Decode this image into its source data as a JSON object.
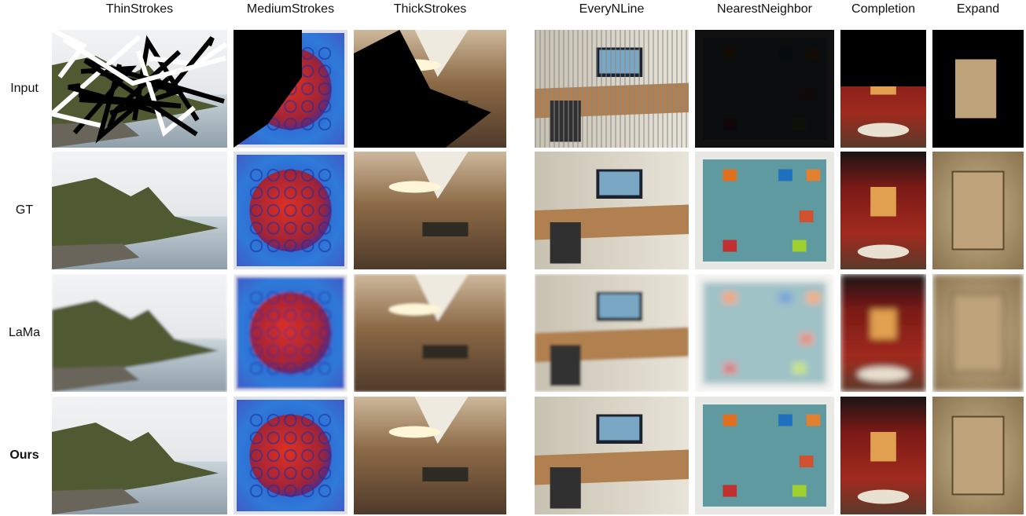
{
  "columns": [
    "ThinStrokes",
    "MediumStrokes",
    "ThickStrokes",
    "EveryNLine",
    "NearestNeighbor",
    "Completion",
    "Expand"
  ],
  "rows": [
    "Input",
    "GT",
    "LaMa",
    "Ours"
  ]
}
